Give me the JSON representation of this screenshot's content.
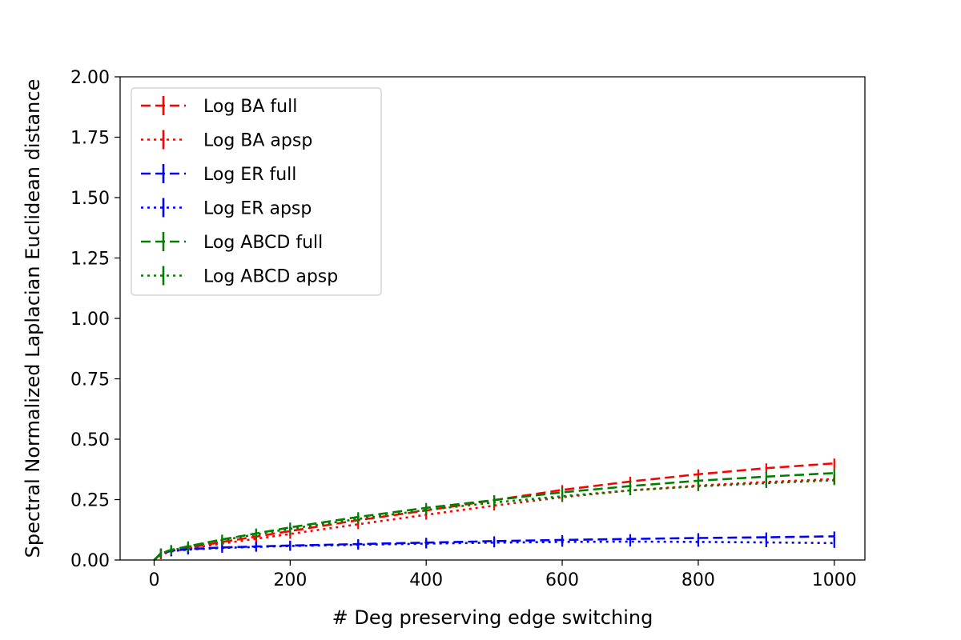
{
  "chart_data": {
    "type": "line",
    "xlabel": "# Deg preserving edge switching",
    "ylabel": "Spectral Normalized Laplacian Euclidean distance",
    "xlim": [
      -50,
      1045
    ],
    "ylim": [
      0,
      2.0
    ],
    "xticks": [
      0,
      200,
      400,
      600,
      800,
      1000
    ],
    "xtick_labels": [
      "0",
      "200",
      "400",
      "600",
      "800",
      "1000"
    ],
    "yticks": [
      0,
      0.25,
      0.5,
      0.75,
      1.0,
      1.25,
      1.5,
      1.75,
      2.0
    ],
    "ytick_labels": [
      "0.00",
      "0.25",
      "0.50",
      "0.75",
      "1.00",
      "1.25",
      "1.50",
      "1.75",
      "2.00"
    ],
    "grid": false,
    "legend_position": "upper-left",
    "error_bar_half_height": 0.02,
    "series": [
      {
        "name": "Log BA full",
        "color": "#ff0000",
        "dash": "dashed",
        "x": [
          0,
          10,
          25,
          50,
          100,
          150,
          200,
          300,
          400,
          500,
          600,
          700,
          800,
          900,
          1000
        ],
        "y": [
          0,
          0.025,
          0.038,
          0.05,
          0.075,
          0.097,
          0.12,
          0.165,
          0.205,
          0.248,
          0.29,
          0.325,
          0.355,
          0.38,
          0.4
        ]
      },
      {
        "name": "Log BA apsp",
        "color": "#ff0000",
        "dash": "dotted",
        "x": [
          0,
          10,
          25,
          50,
          100,
          150,
          200,
          300,
          400,
          500,
          600,
          700,
          800,
          900,
          1000
        ],
        "y": [
          0,
          0.023,
          0.035,
          0.047,
          0.068,
          0.088,
          0.108,
          0.148,
          0.187,
          0.225,
          0.26,
          0.288,
          0.308,
          0.323,
          0.335
        ]
      },
      {
        "name": "Log ER full",
        "color": "#0000ff",
        "dash": "dashed",
        "x": [
          0,
          10,
          25,
          50,
          100,
          150,
          200,
          300,
          400,
          500,
          600,
          700,
          800,
          900,
          1000
        ],
        "y": [
          0,
          0.028,
          0.038,
          0.045,
          0.052,
          0.056,
          0.06,
          0.066,
          0.072,
          0.078,
          0.083,
          0.087,
          0.091,
          0.094,
          0.098
        ]
      },
      {
        "name": "Log ER apsp",
        "color": "#0000ff",
        "dash": "dotted",
        "x": [
          0,
          10,
          25,
          50,
          100,
          150,
          200,
          300,
          400,
          500,
          600,
          700,
          800,
          900,
          1000
        ],
        "y": [
          0,
          0.027,
          0.036,
          0.043,
          0.05,
          0.054,
          0.058,
          0.063,
          0.068,
          0.072,
          0.075,
          0.076,
          0.075,
          0.073,
          0.07
        ]
      },
      {
        "name": "Log ABCD full",
        "color": "#008000",
        "dash": "dashed",
        "x": [
          0,
          10,
          25,
          50,
          100,
          150,
          200,
          300,
          400,
          500,
          600,
          700,
          800,
          900,
          1000
        ],
        "y": [
          0,
          0.028,
          0.042,
          0.057,
          0.085,
          0.11,
          0.135,
          0.178,
          0.216,
          0.248,
          0.28,
          0.306,
          0.328,
          0.345,
          0.36
        ]
      },
      {
        "name": "Log ABCD apsp",
        "color": "#008000",
        "dash": "dotted",
        "x": [
          0,
          10,
          25,
          50,
          100,
          150,
          200,
          300,
          400,
          500,
          600,
          700,
          800,
          900,
          1000
        ],
        "y": [
          0,
          0.027,
          0.04,
          0.055,
          0.082,
          0.106,
          0.129,
          0.17,
          0.207,
          0.238,
          0.264,
          0.288,
          0.305,
          0.318,
          0.33
        ]
      }
    ]
  }
}
